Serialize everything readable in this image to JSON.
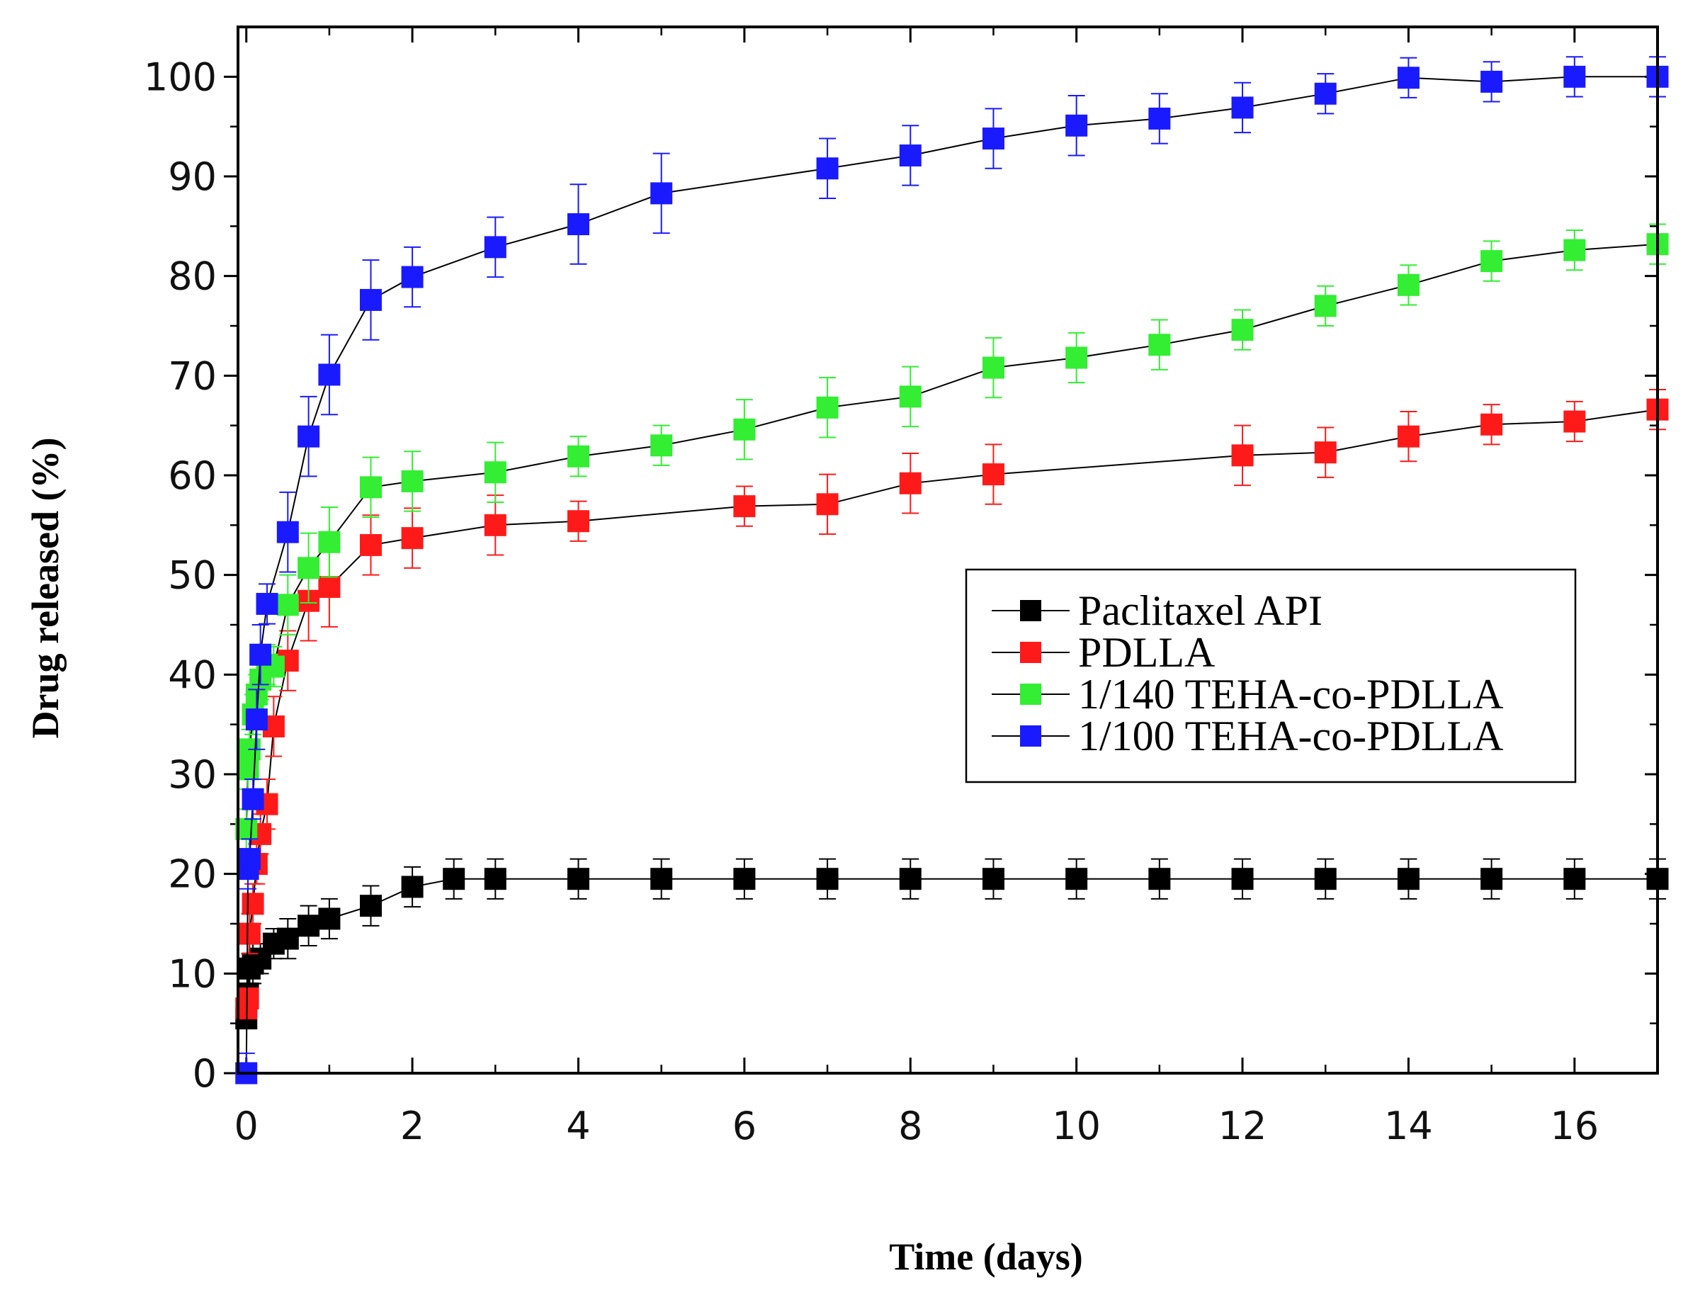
{
  "chart_data": {
    "type": "line",
    "title": "",
    "xlabel": "Time (days)",
    "ylabel": "Drug released (%)",
    "xlim": [
      -0.1,
      17
    ],
    "ylim": [
      0,
      105
    ],
    "xticks": [
      0,
      2,
      4,
      6,
      8,
      10,
      12,
      14,
      16
    ],
    "yticks": [
      0,
      10,
      20,
      30,
      40,
      50,
      60,
      70,
      80,
      90,
      100
    ],
    "xtick_labels": [
      "0",
      "2",
      "4",
      "6",
      "8",
      "10",
      "12",
      "14",
      "16"
    ],
    "ytick_labels": [
      "0",
      "10",
      "20",
      "30",
      "40",
      "50",
      "60",
      "70",
      "80",
      "90",
      "100"
    ],
    "legend_position": "center-right",
    "series": [
      {
        "name": "Paclitaxel API",
        "color": "#000000",
        "x": [
          0,
          0.02,
          0.04,
          0.08,
          0.17,
          0.33,
          0.5,
          0.75,
          1,
          1.5,
          2,
          2.5,
          3,
          4,
          5,
          6,
          7,
          8,
          9,
          10,
          11,
          12,
          13,
          14,
          15,
          16,
          17
        ],
        "y": [
          5.5,
          8,
          10.5,
          11,
          11.5,
          13,
          13.5,
          14.8,
          15.5,
          16.8,
          18.7,
          19.5,
          19.5,
          19.5,
          19.5,
          19.5,
          19.5,
          19.5,
          19.5,
          19.5,
          19.5,
          19.5,
          19.5,
          19.5,
          19.5,
          19.5,
          19.5
        ],
        "err": [
          1,
          1.5,
          1.5,
          2,
          1.5,
          1.5,
          2,
          2,
          2,
          2,
          2,
          2,
          2,
          2,
          2,
          2,
          2,
          2,
          2,
          2,
          2,
          2,
          2,
          2,
          2,
          2,
          2
        ]
      },
      {
        "name": "PDLLA",
        "color": "#ff1a1a",
        "x": [
          0,
          0.02,
          0.04,
          0.08,
          0.125,
          0.17,
          0.25,
          0.33,
          0.5,
          0.75,
          1,
          1.5,
          2,
          3,
          4,
          6,
          7,
          8,
          9,
          12,
          13,
          14,
          15,
          16,
          17
        ],
        "y": [
          6.5,
          7.5,
          14,
          17,
          21,
          24,
          27,
          34.8,
          41.4,
          47.4,
          48.8,
          53,
          53.7,
          55,
          55.4,
          56.9,
          57.1,
          59.2,
          60.1,
          62,
          62.3,
          63.9,
          65.1,
          65.4,
          66.6
        ],
        "err": [
          1,
          1,
          2,
          2,
          2,
          2,
          2.5,
          3,
          3,
          4,
          4,
          3,
          3,
          3,
          2,
          2,
          3,
          3,
          3,
          3,
          2.5,
          2.5,
          2,
          2,
          2
        ]
      },
      {
        "name": "1/140 TEHA-co-PDLLA",
        "color": "#33ee33",
        "x": [
          0,
          0.02,
          0.04,
          0.08,
          0.125,
          0.17,
          0.25,
          0.33,
          0.5,
          0.75,
          1,
          1.5,
          2,
          3,
          4,
          5,
          6,
          7,
          8,
          9,
          10,
          11,
          12,
          13,
          14,
          15,
          16,
          17
        ],
        "y": [
          24.5,
          30.5,
          32.5,
          36,
          38,
          39.5,
          41,
          40.8,
          47,
          50.7,
          53.3,
          58.8,
          59.4,
          60.3,
          61.9,
          63,
          64.6,
          66.8,
          67.9,
          70.8,
          71.8,
          73.1,
          74.6,
          77,
          79.1,
          81.5,
          82.6,
          83.2
        ],
        "err": [
          2,
          2,
          2,
          2,
          2,
          2,
          2,
          2,
          3,
          3.5,
          3.5,
          3,
          3,
          3,
          2,
          2,
          3,
          3,
          3,
          3,
          2.5,
          2.5,
          2,
          2,
          2,
          2,
          2,
          2
        ]
      },
      {
        "name": "1/100 TEHA-co-PDLLA",
        "color": "#1a1aff",
        "x": [
          0,
          0.02,
          0.04,
          0.08,
          0.125,
          0.17,
          0.25,
          0.5,
          0.75,
          1,
          1.5,
          2,
          3,
          4,
          5,
          7,
          8,
          9,
          10,
          11,
          12,
          13,
          14,
          15,
          16,
          17
        ],
        "y": [
          0,
          20.5,
          21.5,
          27.5,
          35.5,
          42,
          47.1,
          54.3,
          63.9,
          70.1,
          77.6,
          79.9,
          82.9,
          85.2,
          88.3,
          90.8,
          92.1,
          93.8,
          95.1,
          95.8,
          96.9,
          98.3,
          99.9,
          99.5,
          100,
          100
        ],
        "err": [
          2,
          2,
          2,
          2,
          3,
          3,
          2,
          4,
          4,
          4,
          4,
          3,
          3,
          4,
          4,
          3,
          3,
          3,
          3,
          2.5,
          2.5,
          2,
          2,
          2,
          2,
          2
        ]
      }
    ]
  }
}
